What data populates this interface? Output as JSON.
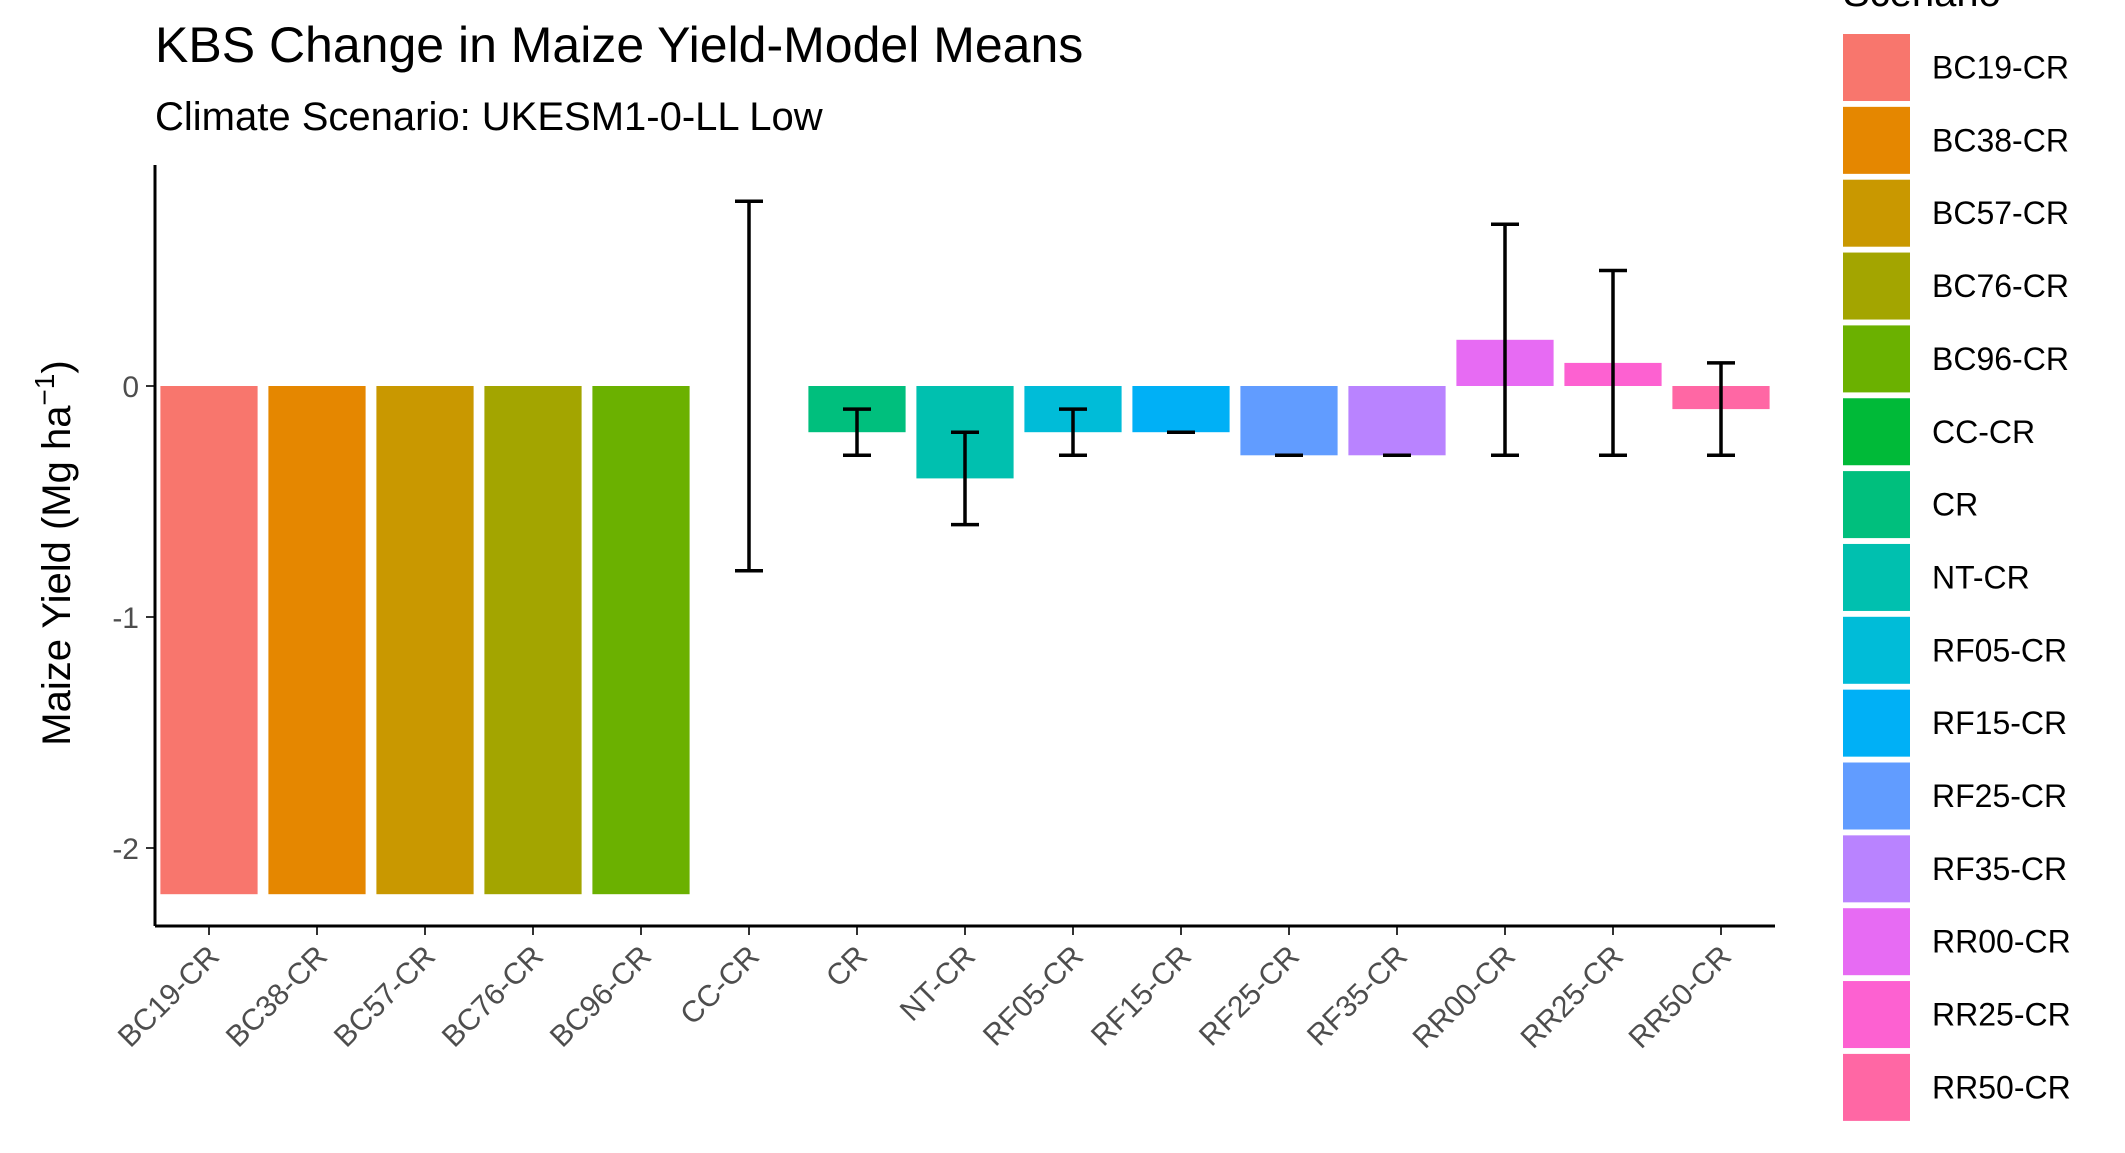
{
  "chart_data": {
    "type": "bar",
    "title": "KBS Change in Maize Yield-Model Means",
    "subtitle": "Climate Scenario: UKESM1-0-LL Low",
    "xlabel": "",
    "ylabel_main": "Maize Yield (Mg ha",
    "ylabel_sup": "−1",
    "ylabel_close": ")",
    "ylim": [
      -2.3,
      0.95
    ],
    "yticks": [
      {
        "value": 0,
        "label": "0"
      },
      {
        "value": -1,
        "label": "-1"
      },
      {
        "value": -2,
        "label": "-2"
      }
    ],
    "legend_title": "Scenario",
    "legend_position": "right",
    "grid": false,
    "categories": [
      "BC19-CR",
      "BC38-CR",
      "BC57-CR",
      "BC76-CR",
      "BC96-CR",
      "CC-CR",
      "CR",
      "NT-CR",
      "RF05-CR",
      "RF15-CR",
      "RF25-CR",
      "RF35-CR",
      "RR00-CR",
      "RR25-CR",
      "RR50-CR"
    ],
    "values": [
      -2.2,
      -2.2,
      -2.2,
      -2.2,
      -2.2,
      0.0,
      -0.2,
      -0.4,
      -0.2,
      -0.2,
      -0.3,
      -0.3,
      0.2,
      0.1,
      -0.1
    ],
    "error_low": [
      null,
      null,
      null,
      null,
      null,
      -0.8,
      -0.3,
      -0.6,
      -0.3,
      -0.2,
      -0.3,
      -0.3,
      -0.3,
      -0.3,
      -0.3
    ],
    "error_high": [
      null,
      null,
      null,
      null,
      null,
      0.8,
      -0.1,
      -0.2,
      -0.1,
      -0.2,
      -0.3,
      -0.3,
      0.7,
      0.5,
      0.1
    ],
    "colors": [
      "#F8766D",
      "#E58700",
      "#C99800",
      "#A3A500",
      "#6BB100",
      "#00BA38",
      "#00BF7D",
      "#00C0AF",
      "#00BCD8",
      "#00B0F6",
      "#619CFF",
      "#B983FF",
      "#E76BF3",
      "#FD61D1",
      "#FF67A4"
    ]
  }
}
